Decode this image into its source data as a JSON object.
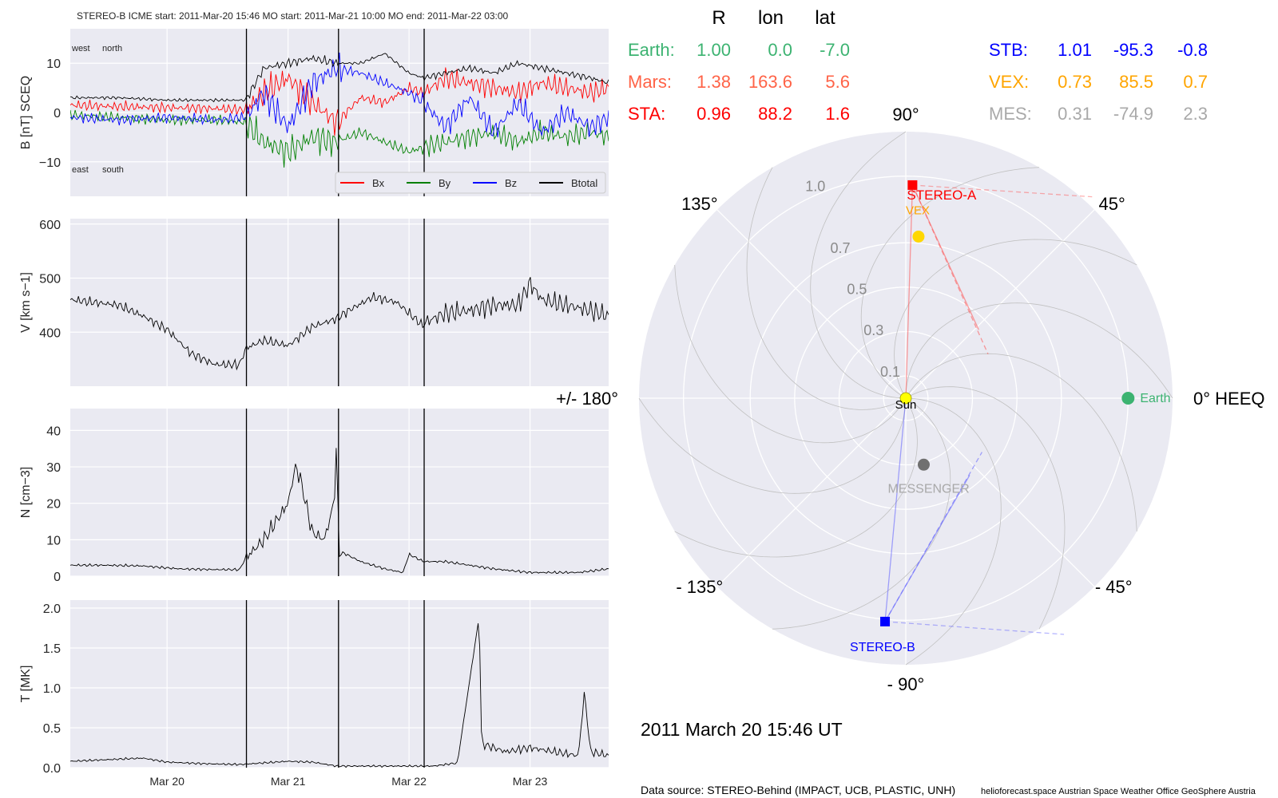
{
  "chart_data": [
    {
      "type": "line",
      "panel": "magnetic-field",
      "title": "STEREO-B    ICME start: 2011-Mar-20 15:46   MO start: 2011-Mar-21 10:00   MO end: 2011-Mar-22 03:00",
      "ylabel": "B [nT] SCEQ",
      "ylim": [
        -17,
        17
      ],
      "yticks": [
        -10,
        0,
        10
      ],
      "annotations": [
        "west",
        "north",
        "east",
        "south"
      ],
      "x_range_days": [
        19.2,
        23.65
      ],
      "event_lines_days": [
        20.656,
        21.417,
        22.125
      ],
      "legend": {
        "placement": "lower-right",
        "entries": [
          "Bx",
          "By",
          "Bz",
          "Btotal"
        ]
      },
      "series": [
        {
          "name": "Bx",
          "color": "#ff0000",
          "x": [
            19.2,
            19.6,
            20.0,
            20.4,
            20.65,
            20.8,
            21.0,
            21.2,
            21.4,
            21.6,
            21.8,
            22.0,
            22.12,
            22.3,
            22.5,
            22.7,
            22.9,
            23.1,
            23.3,
            23.5,
            23.65
          ],
          "y": [
            1.5,
            1.2,
            1.0,
            0.8,
            0.5,
            4,
            7,
            2,
            -2,
            3,
            2,
            5,
            4,
            7,
            6,
            5,
            4,
            6,
            5,
            4,
            5
          ]
        },
        {
          "name": "By",
          "color": "#008000",
          "x": [
            19.2,
            19.6,
            20.0,
            20.4,
            20.65,
            20.8,
            21.0,
            21.2,
            21.4,
            21.6,
            21.8,
            22.0,
            22.12,
            22.3,
            22.5,
            22.7,
            22.9,
            23.1,
            23.3,
            23.5,
            23.65
          ],
          "y": [
            -0.5,
            -1,
            -1.5,
            -1.5,
            -2,
            -6,
            -8,
            -5,
            -6,
            -4,
            -6,
            -8,
            -7,
            -6,
            -5,
            -4,
            -6,
            -4,
            -5,
            -4,
            -5
          ]
        },
        {
          "name": "Bz",
          "color": "#0000ff",
          "x": [
            19.2,
            19.6,
            20.0,
            20.4,
            20.65,
            20.8,
            21.0,
            21.2,
            21.4,
            21.6,
            21.8,
            22.0,
            22.12,
            22.3,
            22.5,
            22.7,
            22.9,
            23.1,
            23.3,
            23.5,
            23.65
          ],
          "y": [
            -1,
            -1.5,
            -1,
            -1.5,
            -1,
            4,
            -3,
            6,
            9,
            8,
            6,
            4,
            2,
            -3,
            3,
            -4,
            2,
            -4,
            0,
            -3,
            -1
          ]
        },
        {
          "name": "Btotal",
          "color": "#000000",
          "x": [
            19.2,
            19.6,
            20.0,
            20.4,
            20.65,
            20.8,
            21.0,
            21.2,
            21.4,
            21.6,
            21.8,
            22.0,
            22.12,
            22.3,
            22.5,
            22.7,
            22.9,
            23.1,
            23.3,
            23.5,
            23.65
          ],
          "y": [
            3,
            3,
            2.5,
            2.5,
            2.5,
            9,
            10,
            11,
            10,
            10,
            12,
            8,
            7,
            8,
            9,
            8,
            10,
            9,
            8,
            7,
            6
          ]
        }
      ]
    },
    {
      "type": "line",
      "panel": "speed",
      "ylabel": "V [km s$^{-1}$]",
      "ylabel_text": "V [km s−1]",
      "ylim": [
        300,
        610
      ],
      "yticks": [
        400,
        500,
        600
      ],
      "series": [
        {
          "name": "",
          "color": "#000000",
          "x": [
            19.2,
            19.4,
            19.6,
            19.8,
            20.0,
            20.2,
            20.4,
            20.6,
            20.65,
            20.8,
            21.0,
            21.2,
            21.4,
            21.5,
            21.7,
            21.9,
            22.1,
            22.3,
            22.5,
            22.7,
            22.9,
            23.0,
            23.1,
            23.3,
            23.5,
            23.65
          ],
          "y": [
            460,
            455,
            450,
            430,
            405,
            360,
            340,
            340,
            370,
            385,
            375,
            410,
            425,
            440,
            465,
            455,
            415,
            435,
            440,
            450,
            450,
            490,
            460,
            450,
            440,
            430
          ]
        }
      ]
    },
    {
      "type": "line",
      "panel": "density",
      "ylabel": "N [cm$^{-3}$]",
      "ylabel_text": "N [cm−3]",
      "ylim": [
        0,
        46
      ],
      "yticks": [
        0,
        10,
        20,
        30,
        40
      ],
      "series": [
        {
          "name": "",
          "color": "#000000",
          "x": [
            19.2,
            19.5,
            19.8,
            20.1,
            20.4,
            20.6,
            20.65,
            20.8,
            21.0,
            21.06,
            21.1,
            21.2,
            21.3,
            21.38,
            21.4,
            21.42,
            21.6,
            21.8,
            21.95,
            22.0,
            22.12,
            22.3,
            22.5,
            22.7,
            23.0,
            23.4,
            23.65
          ],
          "y": [
            3,
            3,
            2.8,
            2,
            1.8,
            1.8,
            5,
            10,
            20,
            30,
            27,
            12,
            10,
            20,
            36,
            7,
            4,
            2,
            1,
            6,
            4,
            4,
            3,
            2,
            1,
            1,
            2
          ]
        }
      ]
    },
    {
      "type": "line",
      "panel": "temperature",
      "ylabel": "T [MK]",
      "ylim": [
        0,
        2.1
      ],
      "yticks": [
        0.0,
        0.5,
        1.0,
        1.5,
        2.0
      ],
      "xticks": [
        "Mar 20",
        "Mar 21",
        "Mar 22",
        "Mar 23"
      ],
      "series": [
        {
          "name": "",
          "color": "#000000",
          "x": [
            19.2,
            19.5,
            19.8,
            20.0,
            20.3,
            20.6,
            20.8,
            21.0,
            21.2,
            21.4,
            21.6,
            21.8,
            22.0,
            22.2,
            22.4,
            22.58,
            22.6,
            22.8,
            23.0,
            23.2,
            23.4,
            23.45,
            23.5,
            23.65
          ],
          "y": [
            0.08,
            0.1,
            0.12,
            0.07,
            0.05,
            0.04,
            0.06,
            0.08,
            0.07,
            0.02,
            0.02,
            0.02,
            0.02,
            0.02,
            0.06,
            1.9,
            0.3,
            0.2,
            0.25,
            0.2,
            0.15,
            0.95,
            0.2,
            0.15
          ]
        }
      ]
    },
    {
      "type": "scatter",
      "panel": "polar-positions",
      "angle_labels": [
        "90°",
        "45°",
        "0° HEEQ",
        "- 45°",
        "- 90°",
        "- 135°",
        "+/- 180°",
        "135°"
      ],
      "radial_labels": [
        "0.1",
        "0.3",
        "0.5",
        "0.7",
        "1.0"
      ],
      "radial_ticks": [
        0.1,
        0.3,
        0.5,
        0.7,
        1.0
      ],
      "rmax": 1.2,
      "bodies": [
        {
          "name": "Sun",
          "label": "Sun",
          "r": 0.0,
          "lon": 0.0,
          "color": "#ffff00"
        },
        {
          "name": "Earth",
          "label": "Earth",
          "r": 1.0,
          "lon": 0.0,
          "color": "#3cb371"
        },
        {
          "name": "STEREO-A",
          "label": "STEREO-A",
          "r": 0.96,
          "lon": 88.2,
          "color": "#ff0000"
        },
        {
          "name": "STEREO-B",
          "label": "STEREO-B",
          "r": 1.01,
          "lon": -95.3,
          "color": "#0000ff"
        },
        {
          "name": "VEX",
          "label": "VEX",
          "r": 0.73,
          "lon": 85.5,
          "color": "#ffd700"
        },
        {
          "name": "MESSENGER",
          "label": "MESSENGER",
          "r": 0.31,
          "lon": -74.9,
          "color": "#707070"
        }
      ],
      "timestamp": "2011 March 20  15:46 UT"
    }
  ],
  "table": {
    "headers": [
      "R",
      "lon",
      "lat"
    ],
    "rows": [
      {
        "name": "Earth:",
        "r": "1.00",
        "lon": "0.0",
        "lat": "-7.0",
        "color": "#3cb371"
      },
      {
        "name": "Mars:",
        "r": "1.38",
        "lon": "163.6",
        "lat": "5.6",
        "color": "#ff6347"
      },
      {
        "name": "STA:",
        "r": "0.96",
        "lon": "88.2",
        "lat": "1.6",
        "color": "#ff0000"
      },
      {
        "name": "STB:",
        "r": "1.01",
        "lon": "-95.3",
        "lat": "-0.8",
        "color": "#0000ff"
      },
      {
        "name": "VEX:",
        "r": "0.73",
        "lon": "85.5",
        "lat": "0.7",
        "color": "#ffa500"
      },
      {
        "name": "MES:",
        "r": "0.31",
        "lon": "-74.9",
        "lat": "2.3",
        "color": "#a9a9a9"
      }
    ]
  },
  "footer": {
    "source": "Data source: STEREO-Behind (IMPACT, UCB, PLASTIC, UNH)",
    "credits": "helioforecast.space   Austrian Space Weather Office   GeoSphere Austria"
  }
}
